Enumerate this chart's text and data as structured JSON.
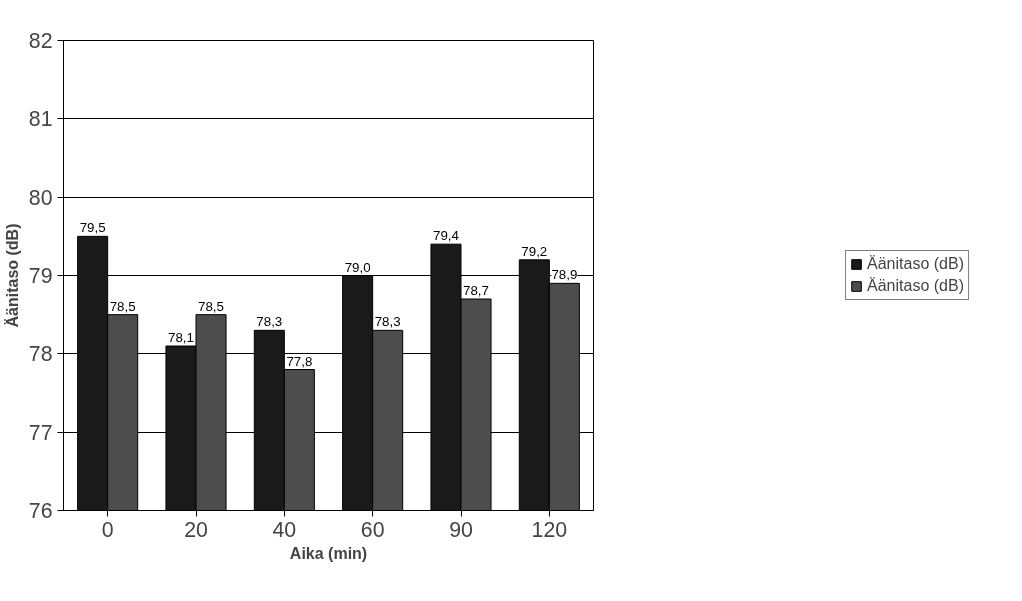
{
  "chart_data": {
    "type": "bar",
    "xlabel": "Aika (min)",
    "ylabel": "Äänitaso (dB)",
    "categories": [
      "0",
      "20",
      "40",
      "60",
      "90",
      "120"
    ],
    "series": [
      {
        "name": "Äänitaso (dB)",
        "color": "#1a1a1a",
        "values": [
          79.5,
          78.1,
          78.3,
          79.0,
          79.4,
          79.2
        ],
        "value_labels": [
          "79,5",
          "78,1",
          "78,3",
          "79,0",
          "79,4",
          "79,2"
        ]
      },
      {
        "name": "Äänitaso (dB)",
        "color": "#4d4d4d",
        "values": [
          78.5,
          78.5,
          77.8,
          78.3,
          78.7,
          78.9
        ],
        "value_labels": [
          "78,5",
          "78,5",
          "77,8",
          "78,3",
          "78,7",
          "78,9"
        ]
      }
    ],
    "ylim": [
      76,
      82
    ],
    "yticks": [
      76,
      77,
      78,
      79,
      80,
      81,
      82
    ],
    "grid": "y",
    "legend": "right"
  }
}
